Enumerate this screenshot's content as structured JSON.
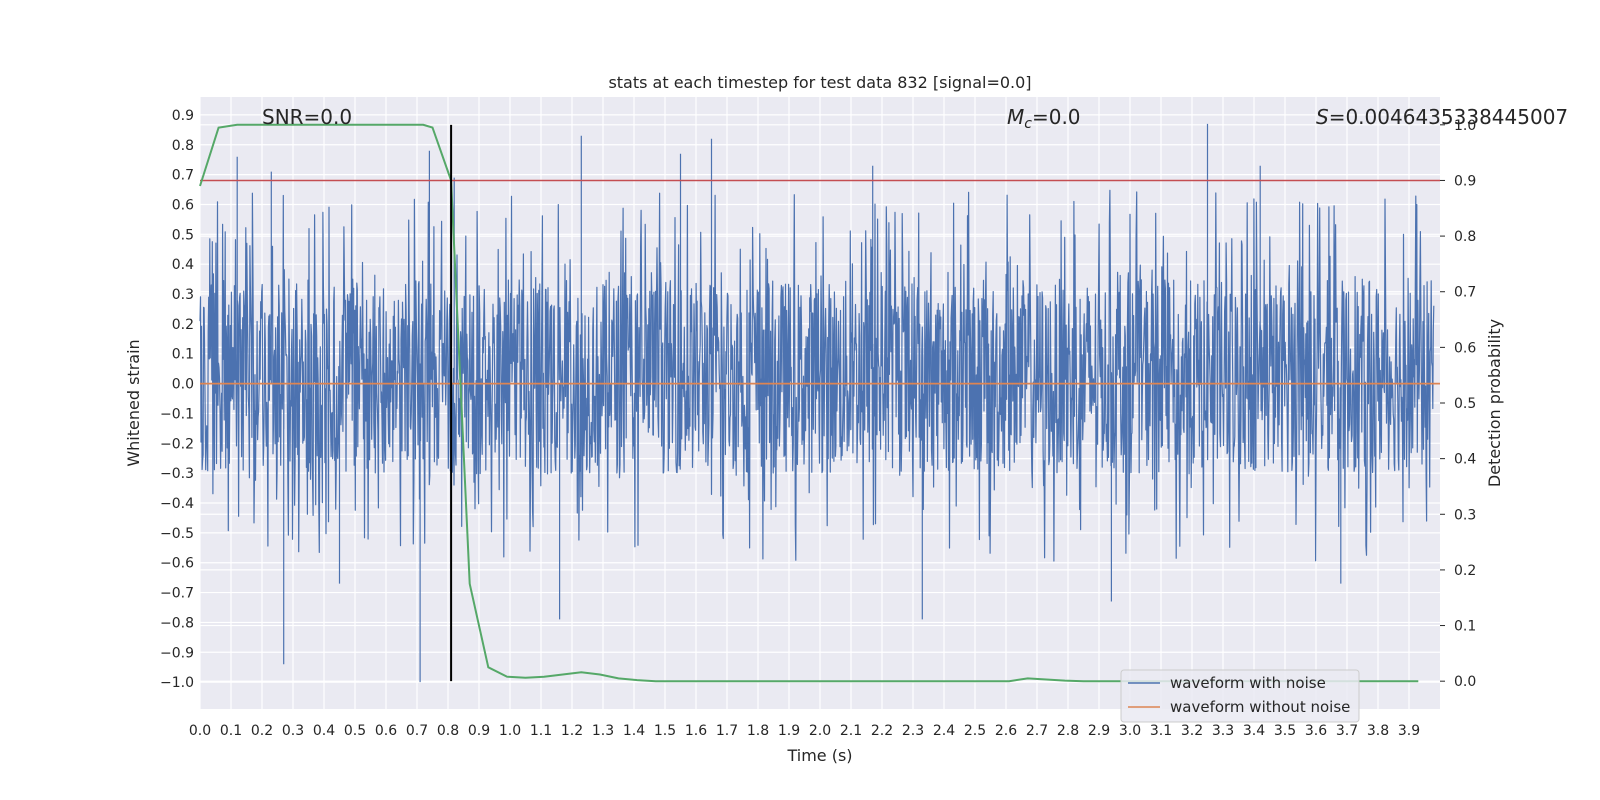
{
  "chart_data": {
    "type": "line",
    "title": "stats at each timestep for test data 832 [signal=0.0]",
    "xlabel": "Time (s)",
    "ylabel": "Whitened strain",
    "y2label": "Detection probability",
    "xlim": [
      0.0,
      4.0
    ],
    "ylim": [
      -1.09,
      0.96
    ],
    "y2lim": [
      -0.05,
      1.05
    ],
    "x_ticks": [
      0.0,
      0.1,
      0.2,
      0.3,
      0.4,
      0.5,
      0.6,
      0.7,
      0.8,
      0.9,
      1.0,
      1.1,
      1.2,
      1.3,
      1.4,
      1.5,
      1.6,
      1.7,
      1.8,
      1.9,
      2.0,
      2.1,
      2.2,
      2.3,
      2.4,
      2.5,
      2.6,
      2.7,
      2.8,
      2.9,
      3.0,
      3.1,
      3.2,
      3.3,
      3.4,
      3.5,
      3.6,
      3.7,
      3.8,
      3.9
    ],
    "y_ticks": [
      0.9,
      0.8,
      0.7,
      0.6,
      0.5,
      0.4,
      0.3,
      0.2,
      0.1,
      0.0,
      -0.1,
      -0.2,
      -0.3,
      -0.4,
      -0.5,
      -0.6,
      -0.7,
      -0.8,
      -0.9,
      -1.0
    ],
    "y2_ticks": [
      0.0,
      0.1,
      0.2,
      0.3,
      0.4,
      0.5,
      0.6,
      0.7,
      0.8,
      0.9,
      1.0
    ],
    "grid": true,
    "legend_position": "bottom-right",
    "annotations": {
      "snr": "SNR=0.0",
      "mc_symbol": "M",
      "mc_subscript": "c",
      "mc_value": "=0.0",
      "s_symbol": "S",
      "s_value": "=0.0046435338445007"
    },
    "series": [
      {
        "name": "waveform with noise",
        "color": "#4c72b0",
        "kind": "noise",
        "typical_range": [
          -0.3,
          0.35
        ],
        "extremes": [
          -1.0,
          0.87
        ],
        "spikes": [
          [
            0.12,
            0.76
          ],
          [
            0.23,
            0.71
          ],
          [
            0.74,
            0.78
          ],
          [
            0.82,
            0.69
          ],
          [
            1.23,
            0.83
          ],
          [
            1.55,
            0.77
          ],
          [
            1.65,
            0.82
          ],
          [
            2.17,
            0.73
          ],
          [
            3.25,
            0.87
          ],
          [
            3.42,
            0.73
          ],
          [
            0.27,
            -0.94
          ],
          [
            0.71,
            -1.0
          ],
          [
            0.45,
            -0.67
          ],
          [
            1.16,
            -0.79
          ],
          [
            2.33,
            -0.79
          ],
          [
            2.94,
            -0.73
          ],
          [
            3.68,
            -0.67
          ]
        ]
      },
      {
        "name": "waveform without noise",
        "color": "#dd8452",
        "x": [
          0.0,
          4.0
        ],
        "y": [
          0.0,
          0.0
        ]
      },
      {
        "name": "detection probability",
        "color": "#55a868",
        "axis": "right",
        "x": [
          0.0,
          0.06,
          0.12,
          0.18,
          0.24,
          0.3,
          0.36,
          0.42,
          0.48,
          0.54,
          0.6,
          0.66,
          0.72,
          0.75,
          0.81,
          0.87,
          0.93,
          0.99,
          1.05,
          1.11,
          1.17,
          1.23,
          1.29,
          1.35,
          1.41,
          1.47,
          1.53,
          1.59,
          1.65,
          1.71,
          1.77,
          1.83,
          1.89,
          1.95,
          2.01,
          2.07,
          2.13,
          2.19,
          2.25,
          2.31,
          2.37,
          2.43,
          2.49,
          2.55,
          2.61,
          2.67,
          2.73,
          2.79,
          2.85,
          2.91,
          2.97,
          3.03,
          3.09,
          3.15,
          3.21,
          3.27,
          3.33,
          3.39,
          3.45,
          3.51,
          3.57,
          3.63,
          3.69,
          3.75,
          3.81,
          3.87,
          3.93
        ],
        "y": [
          0.89,
          0.995,
          1.0,
          1.0,
          1.0,
          1.0,
          1.0,
          1.0,
          1.0,
          1.0,
          1.0,
          1.0,
          1.0,
          0.995,
          0.9,
          0.175,
          0.025,
          0.008,
          0.006,
          0.008,
          0.012,
          0.016,
          0.012,
          0.005,
          0.002,
          0.0,
          0.0,
          0.0,
          0.0,
          0.0,
          0.0,
          0.0,
          0.0,
          0.0,
          0.0,
          0.0,
          0.0,
          0.0,
          0.0,
          0.0,
          0.0,
          0.0,
          0.0,
          0.0,
          0.0,
          0.005,
          0.003,
          0.001,
          0.0,
          0.0,
          0.0,
          0.0,
          0.0,
          0.0,
          0.0,
          0.0,
          0.0,
          0.0,
          0.0,
          0.0,
          0.0,
          0.0,
          0.0,
          0.0,
          0.0,
          0.0,
          0.0
        ]
      }
    ],
    "reference_lines": {
      "threshold": {
        "axis": "right",
        "y": 0.9,
        "color": "#c44e52"
      },
      "marker_time": {
        "x": 0.81,
        "color": "#000000"
      }
    }
  }
}
